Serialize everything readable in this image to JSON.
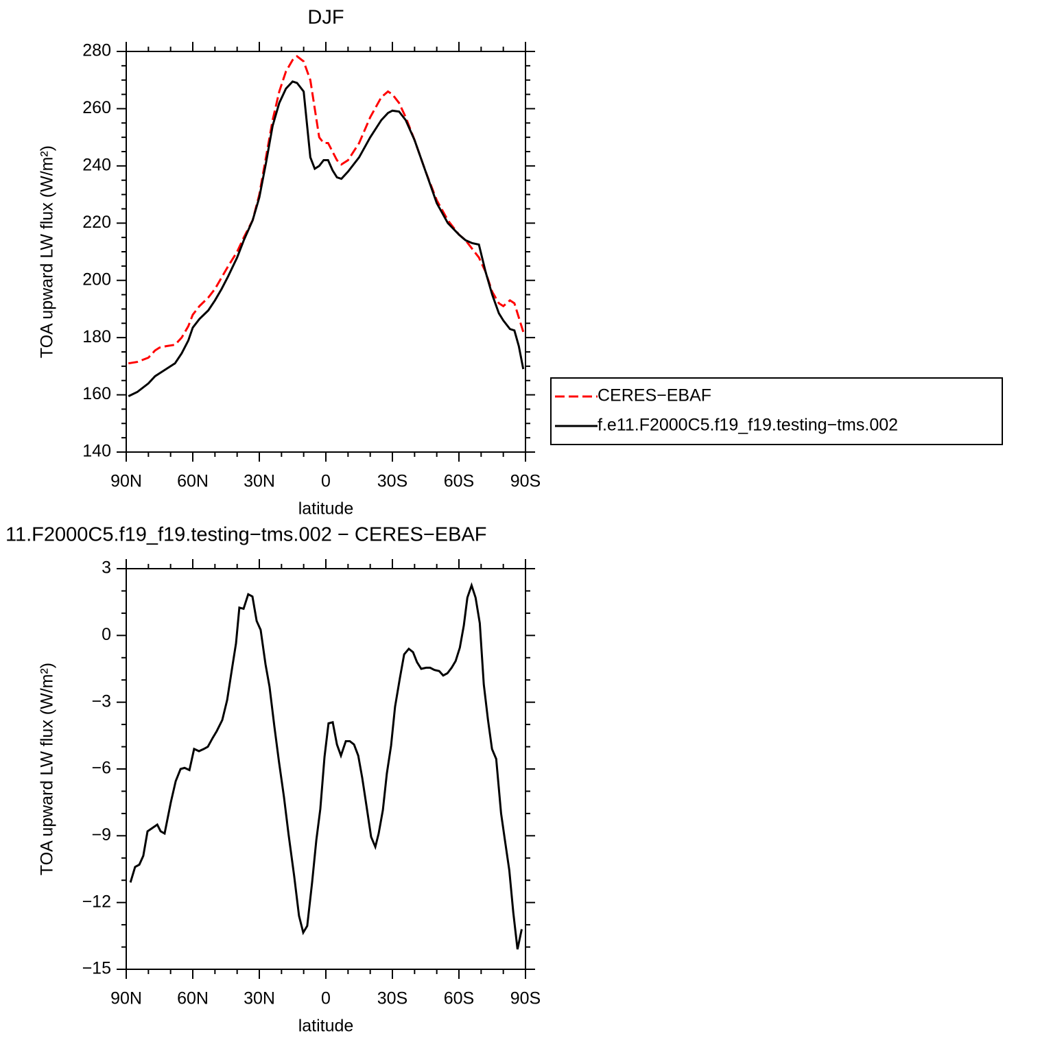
{
  "chart_data": [
    {
      "type": "line",
      "title": "DJF",
      "xlabel": "latitude",
      "ylabel": "TOA upward LW flux (W/m²)",
      "x": [
        89,
        85,
        80,
        77,
        75,
        72,
        68,
        65,
        62,
        60,
        57,
        53,
        50,
        47,
        44,
        40,
        37,
        33,
        30,
        27,
        24,
        21,
        18,
        15,
        13,
        10,
        7,
        5,
        3,
        1,
        -1,
        -3,
        -5,
        -7,
        -10,
        -15,
        -20,
        -25,
        -28,
        -30,
        -33,
        -36,
        -40,
        -45,
        -50,
        -55,
        -60,
        -63,
        -66,
        -69,
        -72,
        -75,
        -78,
        -80,
        -83,
        -85,
        -87,
        -89
      ],
      "xlim": [
        90,
        -90
      ],
      "xticks": [
        {
          "value": 90,
          "label": "90N"
        },
        {
          "value": 60,
          "label": "60N"
        },
        {
          "value": 30,
          "label": "30N"
        },
        0,
        {
          "value": -30,
          "label": "30S"
        },
        {
          "value": -60,
          "label": "60S"
        },
        {
          "value": -90,
          "label": "90S"
        }
      ],
      "ylim": [
        140,
        280
      ],
      "yticks": [
        140,
        160,
        180,
        200,
        220,
        240,
        260,
        280
      ],
      "legend": "outside right",
      "series": [
        {
          "name": "CERES−EBAF",
          "color": "#ff0000",
          "dashed": true,
          "values": [
            171,
            171.5,
            173,
            175.5,
            176.5,
            177,
            177.5,
            180,
            184,
            188,
            191,
            194,
            197,
            201,
            205,
            210,
            215,
            221,
            230,
            243,
            256,
            266,
            273,
            277,
            278.3,
            276.5,
            270,
            260,
            250,
            248,
            248,
            245,
            242,
            240.5,
            242,
            248,
            257,
            264,
            266,
            265,
            262,
            257,
            249,
            238,
            228,
            221,
            216,
            214,
            211,
            208,
            203,
            196,
            192,
            191,
            193,
            192,
            187,
            182
          ]
        },
        {
          "name": "f.e11.F2000C5.f19_f19.testing−tms.002",
          "color": "#000000",
          "dashed": false,
          "values": [
            159.5,
            161,
            164,
            166.5,
            167.5,
            169,
            171,
            174.5,
            179,
            183.5,
            186.5,
            189.5,
            193,
            197,
            201.5,
            208,
            214,
            221,
            229,
            241,
            254,
            262,
            267,
            269.5,
            269,
            266,
            243,
            239,
            240,
            242,
            242,
            238.5,
            236,
            235.5,
            238,
            243,
            250,
            256,
            258.5,
            259.3,
            259,
            256,
            249,
            238,
            227,
            220,
            216,
            214,
            213,
            212.5,
            203,
            195,
            188.5,
            186,
            183,
            182.5,
            177,
            169
          ]
        }
      ]
    },
    {
      "type": "line",
      "title": "11.F2000C5.f19_f19.testing−tms.002 − CERES−EBAF",
      "xlabel": "latitude",
      "ylabel": "TOA upward LW flux (W/m²)",
      "x": [
        88.1,
        86,
        84.1,
        82.3,
        80.4,
        78.2,
        76,
        74.5,
        72.7,
        69.9,
        67.7,
        65.5,
        63.7,
        61.5,
        59.4,
        57.2,
        55,
        53.2,
        51,
        49.2,
        46.7,
        44.5,
        42.4,
        40.5,
        39,
        37.1,
        35,
        33.1,
        31.2,
        29.4,
        27.2,
        25.4,
        23.2,
        21.1,
        18.9,
        16.8,
        14.3,
        12.1,
        10.2,
        8.4,
        6.2,
        4.3,
        2.5,
        0.6,
        -1.2,
        -3.1,
        -5,
        -6.8,
        -9,
        -10.8,
        -12.7,
        -14.6,
        -16.4,
        -18.3,
        -20.4,
        -22.3,
        -23.8,
        -25.7,
        -27.5,
        -29.4,
        -31.2,
        -33.4,
        -35.3,
        -37.4,
        -39.3,
        -41.1,
        -43,
        -45.2,
        -47,
        -48.9,
        -51.1,
        -52.9,
        -54.8,
        -56.7,
        -58.5,
        -60.4,
        -62.2,
        -63.8,
        -65.7,
        -67.5,
        -69.4,
        -71.2,
        -73.1,
        -74.9,
        -76.8,
        -79,
        -80.8,
        -82.7,
        -84.5,
        -86.4,
        -88.3
      ],
      "values": [
        -11.1,
        -10.4,
        -10.3,
        -9.9,
        -8.8,
        -8.65,
        -8.5,
        -8.8,
        -8.9,
        -7.5,
        -6.55,
        -6,
        -5.95,
        -6.05,
        -5.1,
        -5.2,
        -5.1,
        -5,
        -4.6,
        -4.3,
        -3.8,
        -2.9,
        -1.55,
        -0.35,
        1.25,
        1.2,
        1.85,
        1.75,
        0.65,
        0.25,
        -1.3,
        -2.3,
        -4.1,
        -5.7,
        -7.25,
        -8.95,
        -10.8,
        -12.6,
        -13.35,
        -13.05,
        -11.1,
        -9.2,
        -7.8,
        -5.45,
        -3.95,
        -3.9,
        -4.9,
        -5.4,
        -4.75,
        -4.75,
        -4.9,
        -5.4,
        -6.4,
        -7.65,
        -9.05,
        -9.5,
        -8.9,
        -7.85,
        -6.2,
        -4.95,
        -3.2,
        -1.9,
        -0.85,
        -0.6,
        -0.75,
        -1.2,
        -1.5,
        -1.45,
        -1.45,
        -1.55,
        -1.6,
        -1.8,
        -1.7,
        -1.45,
        -1.15,
        -0.55,
        0.45,
        1.7,
        2.25,
        1.7,
        0.55,
        -2.2,
        -3.8,
        -5.1,
        -5.55,
        -8,
        -9.25,
        -10.55,
        -12.45,
        -14.1,
        -13.2
      ],
      "color": "#000000",
      "xlim": [
        90,
        -90
      ],
      "xticks": [
        {
          "value": 90,
          "label": "90N"
        },
        {
          "value": 60,
          "label": "60N"
        },
        {
          "value": 30,
          "label": "30N"
        },
        0,
        {
          "value": -30,
          "label": "30S"
        },
        {
          "value": -60,
          "label": "60S"
        },
        {
          "value": -90,
          "label": "90S"
        }
      ],
      "ylim": [
        -15,
        3
      ],
      "yticks": [
        {
          "value": -15,
          "label": "−15"
        },
        {
          "value": -12,
          "label": "−12"
        },
        {
          "value": -9,
          "label": "−9"
        },
        {
          "value": -6,
          "label": "−6"
        },
        {
          "value": -3,
          "label": "−3"
        },
        0,
        3
      ]
    }
  ]
}
